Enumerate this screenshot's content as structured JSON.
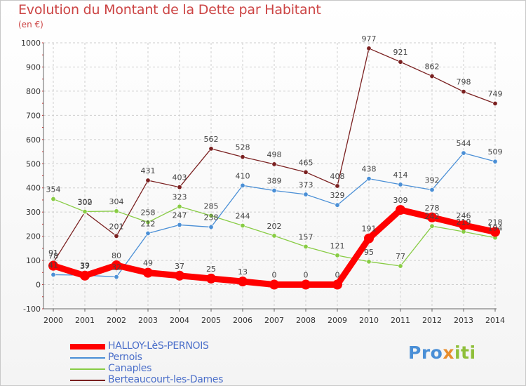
{
  "title": "Evolution du Montant de la Dette par Habitant",
  "subtitle": "(en €)",
  "logo": {
    "p1": "Pro",
    "p2": "x",
    "p3": "iti"
  },
  "chart_data": {
    "type": "line",
    "x": [
      2000,
      2001,
      2002,
      2003,
      2004,
      2005,
      2006,
      2007,
      2008,
      2009,
      2010,
      2011,
      2012,
      2013,
      2014
    ],
    "ylim": [
      -100,
      1000
    ],
    "yticks": [
      -100,
      0,
      100,
      200,
      300,
      400,
      500,
      600,
      700,
      800,
      900,
      1000
    ],
    "grid": true,
    "legend_position": "bottom-left",
    "series": [
      {
        "name": "HALLOY-LèS-PERNOIS",
        "color": "#ff0000",
        "values": [
          78,
          37,
          80,
          49,
          37,
          25,
          13,
          0,
          0,
          0,
          191,
          309,
          278,
          246,
          218
        ]
      },
      {
        "name": "Pernois",
        "color": "#4a8fd6",
        "values": [
          41,
          39,
          32,
          212,
          247,
          238,
          410,
          389,
          373,
          329,
          438,
          414,
          392,
          544,
          509
        ]
      },
      {
        "name": "Canaples",
        "color": "#88cc44",
        "values": [
          354,
          302,
          304,
          258,
          323,
          285,
          244,
          202,
          157,
          121,
          95,
          77,
          242,
          219,
          194
        ]
      },
      {
        "name": "Berteaucourt-les-Dames",
        "color": "#7a2020",
        "values": [
          91,
          300,
          201,
          431,
          403,
          562,
          528,
          498,
          465,
          408,
          977,
          921,
          862,
          798,
          749
        ]
      }
    ]
  }
}
